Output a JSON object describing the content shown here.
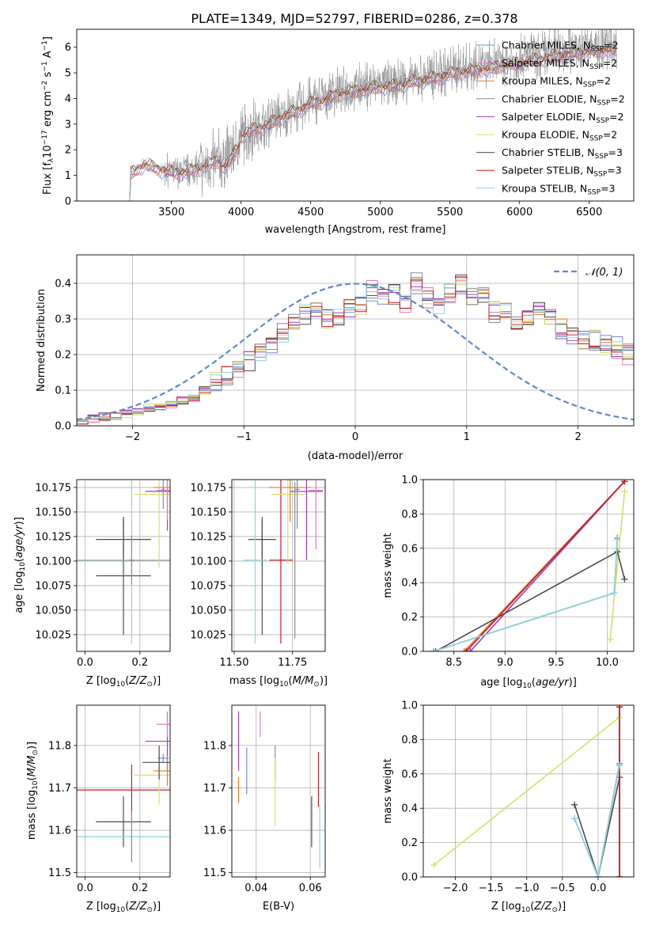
{
  "figure": {
    "title": "PLATE=1349, MJD=52797, FIBERID=0286, z=0.378"
  },
  "colors": {
    "chabrier_miles": "#6c8ed6",
    "salpeter_miles": "#e27ac0",
    "kroupa_miles": "#e07a2a",
    "chabrier_elodie": "#8c8c8c",
    "salpeter_elodie": "#9d3dbd",
    "kroupa_elodie": "#d8e068",
    "chabrier_stelib": "#4d4d4d",
    "salpeter_stelib": "#c81e1e",
    "kroupa_stelib": "#8ed4dc",
    "normal_curve": "#5e88d6",
    "grid": "#b0b0b0"
  },
  "chart_data": [
    {
      "id": "spectrum",
      "type": "line",
      "title": "PLATE=1349, MJD=52797, FIBERID=0286, z=0.378",
      "xlabel": "wavelength [Angstrom, rest frame]",
      "ylabel": "Flux [f$_\\lambda$10$^{-17}$ erg cm$^{-2}$ s$^{-1}$ A$^{-1}$]",
      "ylabel_parts": [
        "Flux [f",
        "λ",
        "10",
        "−17",
        " erg cm",
        "−2",
        " s",
        "−1",
        " A",
        "−1",
        "]"
      ],
      "xlim": [
        2820,
        6820
      ],
      "ylim": [
        0,
        6.7
      ],
      "xticks": [
        3500,
        4000,
        4500,
        5000,
        5500,
        6000,
        6500
      ],
      "yticks": [
        0,
        1,
        2,
        3,
        4,
        5,
        6
      ],
      "grid": false,
      "legend_position": "top-right",
      "legend": [
        {
          "name": "Chabrier MILES, N",
          "sub": "SSP",
          "suffix": "=2",
          "color_key": "chabrier_miles"
        },
        {
          "name": "Salpeter MILES, N",
          "sub": "SSP",
          "suffix": "=2",
          "color_key": "salpeter_miles"
        },
        {
          "name": "Kroupa MILES, N",
          "sub": "SSP",
          "suffix": "=2",
          "color_key": "kroupa_miles"
        },
        {
          "name": "Chabrier ELODIE, N",
          "sub": "SSP",
          "suffix": "=2",
          "color_key": "chabrier_elodie"
        },
        {
          "name": "Salpeter ELODIE, N",
          "sub": "SSP",
          "suffix": "=2",
          "color_key": "salpeter_elodie"
        },
        {
          "name": "Kroupa ELODIE, N",
          "sub": "SSP",
          "suffix": "=2",
          "color_key": "kroupa_elodie"
        },
        {
          "name": "Chabrier STELIB, N",
          "sub": "SSP",
          "suffix": "=3",
          "color_key": "chabrier_stelib"
        },
        {
          "name": "Salpeter STELIB, N",
          "sub": "SSP",
          "suffix": "=3",
          "color_key": "salpeter_stelib"
        },
        {
          "name": "Kroupa STELIB, N",
          "sub": "SSP",
          "suffix": "=3",
          "color_key": "kroupa_stelib"
        }
      ],
      "data_range": [
        3200,
        6700
      ],
      "continuum": {
        "x": [
          3200,
          3300,
          3400,
          3500,
          3600,
          3700,
          3800,
          3900,
          4000,
          4100,
          4200,
          4300,
          4400,
          4500,
          4600,
          4700,
          4800,
          4900,
          5000,
          5100,
          5200,
          5300,
          5400,
          5500,
          5600,
          5700,
          5800,
          5900,
          6000,
          6100,
          6200,
          6300,
          6400,
          6500,
          6600,
          6700
        ],
        "y": [
          1.05,
          1.45,
          1.3,
          1.15,
          1.15,
          1.3,
          1.55,
          1.7,
          2.6,
          2.9,
          3.05,
          3.4,
          3.6,
          3.9,
          4.05,
          4.3,
          4.4,
          4.5,
          4.6,
          4.6,
          4.75,
          4.85,
          4.95,
          5.1,
          5.2,
          5.25,
          5.35,
          5.45,
          5.55,
          5.65,
          5.75,
          5.85,
          5.95,
          6.0,
          6.05,
          6.1
        ]
      }
    },
    {
      "id": "residuals",
      "type": "histogram",
      "xlabel": "(data-model)/error",
      "ylabel": "Normed distribution",
      "xlim": [
        -2.5,
        2.5
      ],
      "ylim": [
        0,
        0.48
      ],
      "xticks": [
        -2,
        -1,
        0,
        1,
        2
      ],
      "yticks": [
        0.0,
        0.1,
        0.2,
        0.3,
        0.4
      ],
      "grid": true,
      "legend_position": "top-right",
      "legend": [
        {
          "name": "𝒩(0, 1)",
          "color_key": "normal_curve",
          "style": "dashed"
        }
      ],
      "bin_width": 0.1,
      "bin_start": -2.5,
      "base_values": [
        0.01,
        0.02,
        0.025,
        0.03,
        0.035,
        0.04,
        0.05,
        0.055,
        0.06,
        0.07,
        0.08,
        0.1,
        0.12,
        0.14,
        0.16,
        0.18,
        0.2,
        0.23,
        0.26,
        0.29,
        0.31,
        0.32,
        0.3,
        0.3,
        0.33,
        0.34,
        0.38,
        0.36,
        0.37,
        0.34,
        0.4,
        0.36,
        0.33,
        0.37,
        0.4,
        0.37,
        0.36,
        0.32,
        0.32,
        0.3,
        0.31,
        0.32,
        0.3,
        0.27,
        0.25,
        0.24,
        0.24,
        0.23,
        0.22,
        0.2,
        0.21,
        0.18,
        0.16,
        0.14,
        0.12,
        0.1,
        0.09,
        0.08,
        0.07,
        0.06,
        0.05,
        0.05,
        0.04,
        0.04,
        0.04,
        0.03,
        0.03,
        0.03,
        0.03,
        0.03,
        0.03,
        0.03
      ],
      "normal": {
        "mean": 0,
        "sigma": 1
      }
    },
    {
      "id": "age_vs_Z",
      "type": "scatter",
      "xlabel": "Z [log$_{10}$(Z/Z$_\\odot$)]",
      "ylabel": "age  [log$_{10}$(age/yr)]",
      "xlim": [
        -0.03,
        0.31
      ],
      "ylim": [
        10.008,
        10.183
      ],
      "xticks": [
        0.0,
        0.2
      ],
      "xtick_labels": [
        "0.0",
        "0.2"
      ],
      "yticks": [
        10.025,
        10.05,
        10.075,
        10.1,
        10.125,
        10.15,
        10.175
      ],
      "ytick_labels": [
        "10.025",
        "10.050",
        "10.075",
        "10.100",
        "10.125",
        "10.150",
        "10.175"
      ],
      "grid": true,
      "points": [
        {
          "color_key": "chabrier_stelib",
          "x": 0.14,
          "xerr": 0.1,
          "y": 10.122,
          "yerr": 0.022
        },
        {
          "color_key": "chabrier_stelib",
          "x": 0.14,
          "xerr": 0.1,
          "y": 10.085,
          "yerr": 0.06
        },
        {
          "color_key": "salpeter_stelib",
          "x": 0.17,
          "xerr": 0.2,
          "y": 10.101,
          "yerr": 0.0
        },
        {
          "color_key": "kroupa_stelib",
          "x": 0.17,
          "xerr": 0.2,
          "y": 10.101,
          "yerr": 0.085
        },
        {
          "color_key": "chabrier_elodie",
          "x": 0.17,
          "xerr": 0.01,
          "y": 10.101,
          "yerr": 0.025
        },
        {
          "color_key": "kroupa_elodie",
          "x": 0.27,
          "xerr": 0.09,
          "y": 10.168,
          "yerr": 0.075
        },
        {
          "color_key": "salpeter_elodie",
          "x": 0.3,
          "xerr": 0.08,
          "y": 10.171,
          "yerr": 0.04
        },
        {
          "color_key": "kroupa_miles",
          "x": 0.3,
          "xerr": 0.05,
          "y": 10.175,
          "yerr": 0.02
        },
        {
          "color_key": "salpeter_miles",
          "x": 0.3,
          "xerr": 0.04,
          "y": 10.172,
          "yerr": 0.03
        },
        {
          "color_key": "chabrier_miles",
          "x": 0.285,
          "xerr": 0.005,
          "y": 10.173,
          "yerr": 0.02
        }
      ]
    },
    {
      "id": "age_vs_mass",
      "type": "scatter",
      "xlabel": "mass [log$_{10}$(M/M$_\\odot$)]",
      "ylabel": "",
      "xlim": [
        11.49,
        11.89
      ],
      "ylim": [
        10.008,
        10.183
      ],
      "xticks": [
        11.5,
        11.75
      ],
      "xtick_labels": [
        "11.50",
        "11.75"
      ],
      "yticks": [
        10.025,
        10.05,
        10.075,
        10.1,
        10.125,
        10.15,
        10.175
      ],
      "ytick_labels": [
        "10.025",
        "10.050",
        "10.075",
        "10.100",
        "10.125",
        "10.150",
        "10.175"
      ],
      "grid": true,
      "points": [
        {
          "color_key": "chabrier_stelib",
          "x": 11.62,
          "xerr": 0.06,
          "y": 10.122,
          "yerr": 0.02
        },
        {
          "color_key": "chabrier_stelib",
          "x": 11.62,
          "xerr": 0.0,
          "y": 10.085,
          "yerr": 0.06
        },
        {
          "color_key": "salpeter_stelib",
          "x": 11.7,
          "xerr": 0.05,
          "y": 10.101,
          "yerr": 0.085
        },
        {
          "color_key": "kroupa_stelib",
          "x": 11.59,
          "xerr": 0.05,
          "y": 10.101,
          "yerr": 0.085
        },
        {
          "color_key": "kroupa_elodie",
          "x": 11.73,
          "xerr": 0.07,
          "y": 10.168,
          "yerr": 0.07
        },
        {
          "color_key": "salpeter_elodie",
          "x": 11.81,
          "xerr": 0.07,
          "y": 10.171,
          "yerr": 0.07
        },
        {
          "color_key": "kroupa_miles",
          "x": 11.74,
          "xerr": 0.09,
          "y": 10.175,
          "yerr": 0.035
        },
        {
          "color_key": "salpeter_miles",
          "x": 11.85,
          "xerr": 0.03,
          "y": 10.172,
          "yerr": 0.06
        },
        {
          "color_key": "chabrier_miles",
          "x": 11.77,
          "xerr": 0.01,
          "y": 10.173,
          "yerr": 0.04
        },
        {
          "color_key": "chabrier_elodie",
          "x": 11.76,
          "xerr": 0.0,
          "y": 10.101,
          "yerr": 0.08
        }
      ]
    },
    {
      "id": "massweight_vs_age",
      "type": "line",
      "xlabel": "age  [log$_{10}$(age/yr)]",
      "ylabel": "mass weight",
      "xlim": [
        8.2,
        10.26
      ],
      "ylim": [
        0,
        1.0
      ],
      "xticks": [
        8.5,
        9.0,
        9.5,
        10.0
      ],
      "xtick_labels": [
        "8.5",
        "9.0",
        "9.5",
        "10.0"
      ],
      "yticks": [
        0.0,
        0.2,
        0.4,
        0.6,
        0.8,
        1.0
      ],
      "ytick_labels": [
        "0.0",
        "0.2",
        "0.4",
        "0.6",
        "0.8",
        "1.0"
      ],
      "grid": true,
      "series": [
        {
          "color_key": "chabrier_miles",
          "x": [
            8.3,
            10.07,
            10.1
          ],
          "y": [
            0.0,
            0.34,
            0.66
          ]
        },
        {
          "color_key": "salpeter_miles",
          "x": [
            8.62,
            10.17
          ],
          "y": [
            0.0,
            0.99
          ]
        },
        {
          "color_key": "kroupa_miles",
          "x": [
            8.6,
            10.17
          ],
          "y": [
            0.0,
            0.99
          ]
        },
        {
          "color_key": "chabrier_elodie",
          "x": [
            8.3,
            10.07,
            10.1
          ],
          "y": [
            0.0,
            0.34,
            0.66
          ]
        },
        {
          "color_key": "salpeter_elodie",
          "x": [
            8.66,
            10.17
          ],
          "y": [
            0.0,
            0.99
          ]
        },
        {
          "color_key": "kroupa_elodie",
          "x": [
            10.03,
            10.17
          ],
          "y": [
            0.07,
            0.93
          ]
        },
        {
          "color_key": "chabrier_stelib",
          "x": [
            8.32,
            10.1,
            10.17
          ],
          "y": [
            0.0,
            0.58,
            0.42
          ]
        },
        {
          "color_key": "salpeter_stelib",
          "x": [
            8.62,
            10.17
          ],
          "y": [
            0.0,
            0.99
          ]
        },
        {
          "color_key": "kroupa_stelib",
          "x": [
            8.3,
            10.07,
            10.1
          ],
          "y": [
            0.0,
            0.34,
            0.65
          ]
        }
      ]
    },
    {
      "id": "mass_vs_Z",
      "type": "scatter",
      "xlabel": "Z [log$_{10}$(Z/Z$_\\odot$)]",
      "ylabel": "mass [log$_{10}$(M/M$_\\odot$)]",
      "xlim": [
        -0.03,
        0.31
      ],
      "ylim": [
        11.49,
        11.895
      ],
      "xticks": [
        0.0,
        0.2
      ],
      "xtick_labels": [
        "0.0",
        "0.2"
      ],
      "yticks": [
        11.5,
        11.6,
        11.7,
        11.8
      ],
      "ytick_labels": [
        "11.5",
        "11.6",
        "11.7",
        "11.8"
      ],
      "grid": true,
      "points": [
        {
          "color_key": "chabrier_stelib",
          "x": 0.14,
          "xerr": 0.1,
          "y": 11.62,
          "yerr": 0.06
        },
        {
          "color_key": "salpeter_stelib",
          "x": 0.17,
          "xerr": 0.2,
          "y": 11.695,
          "yerr": 0.06
        },
        {
          "color_key": "kroupa_stelib",
          "x": 0.17,
          "xerr": 0.2,
          "y": 11.585,
          "yerr": 0.06
        },
        {
          "color_key": "chabrier_elodie",
          "x": 0.17,
          "xerr": 0.0,
          "y": 11.585,
          "yerr": 0.06
        },
        {
          "color_key": "kroupa_elodie",
          "x": 0.27,
          "xerr": 0.09,
          "y": 11.73,
          "yerr": 0.07
        },
        {
          "color_key": "salpeter_elodie",
          "x": 0.3,
          "xerr": 0.08,
          "y": 11.81,
          "yerr": 0.07
        },
        {
          "color_key": "kroupa_miles",
          "x": 0.3,
          "xerr": 0.05,
          "y": 11.74,
          "yerr": 0.035
        },
        {
          "color_key": "salpeter_miles",
          "x": 0.3,
          "xerr": 0.04,
          "y": 11.85,
          "yerr": 0.03
        },
        {
          "color_key": "chabrier_miles",
          "x": 0.285,
          "xerr": 0.02,
          "y": 11.77,
          "yerr": 0.01
        },
        {
          "color_key": "chabrier_stelib",
          "x": 0.27,
          "xerr": 0.06,
          "y": 11.76,
          "yerr": 0.04
        }
      ]
    },
    {
      "id": "mass_vs_ebv",
      "type": "scatter",
      "xlabel": "E(B-V)",
      "ylabel": "",
      "xlim": [
        0.031,
        0.0655
      ],
      "ylim": [
        11.49,
        11.895
      ],
      "xticks": [
        0.04,
        0.06
      ],
      "xtick_labels": [
        "0.04",
        "0.06"
      ],
      "yticks": [
        11.5,
        11.6,
        11.7,
        11.8
      ],
      "ytick_labels": [
        "11.5",
        "11.6",
        "11.7",
        "11.8"
      ],
      "grid": true,
      "points": [
        {
          "color_key": "kroupa_miles",
          "x": 0.0335,
          "y": 11.695,
          "yerr": 0.03
        },
        {
          "color_key": "salpeter_elodie",
          "x": 0.0335,
          "y": 11.81,
          "yerr": 0.07
        },
        {
          "color_key": "chabrier_miles",
          "x": 0.0365,
          "y": 11.74,
          "yerr": 0.055
        },
        {
          "color_key": "salpeter_miles",
          "x": 0.0415,
          "y": 11.85,
          "yerr": 0.03
        },
        {
          "color_key": "chabrier_elodie",
          "x": 0.047,
          "y": 11.76,
          "yerr": 0.04
        },
        {
          "color_key": "kroupa_elodie",
          "x": 0.047,
          "y": 11.69,
          "yerr": 0.08
        },
        {
          "color_key": "chabrier_stelib",
          "x": 0.0605,
          "y": 11.62,
          "yerr": 0.06
        },
        {
          "color_key": "salpeter_stelib",
          "x": 0.063,
          "y": 11.72,
          "yerr": 0.065
        },
        {
          "color_key": "kroupa_stelib",
          "x": 0.0635,
          "y": 11.585,
          "yerr": 0.075
        }
      ]
    },
    {
      "id": "massweight_vs_Z",
      "type": "line",
      "xlabel": "Z [log$_{10}$(Z/Z$_\\odot$)]",
      "ylabel": "mass weight",
      "xlim": [
        -2.45,
        0.5
      ],
      "ylim": [
        0,
        1.0
      ],
      "xticks": [
        -2.0,
        -1.5,
        -1.0,
        -0.5,
        0.0
      ],
      "xtick_labels": [
        "−2.0",
        "−1.5",
        "−1.0",
        "−0.5",
        "0.0"
      ],
      "yticks": [
        0.0,
        0.2,
        0.4,
        0.6,
        0.8,
        1.0
      ],
      "ytick_labels": [
        "0.0",
        "0.2",
        "0.4",
        "0.6",
        "0.8",
        "1.0"
      ],
      "grid": true,
      "series": [
        {
          "color_key": "chabrier_miles",
          "x": [
            -0.33,
            0.0,
            0.3
          ],
          "y": [
            0.34,
            0.0,
            0.66
          ]
        },
        {
          "color_key": "salpeter_miles",
          "x": [
            0.3,
            0.3
          ],
          "y": [
            0.0,
            0.99
          ]
        },
        {
          "color_key": "kroupa_miles",
          "x": [
            0.3,
            0.3
          ],
          "y": [
            0.0,
            0.99
          ]
        },
        {
          "color_key": "chabrier_elodie",
          "x": [
            -0.33,
            0.0,
            0.3
          ],
          "y": [
            0.34,
            0.0,
            0.65
          ]
        },
        {
          "color_key": "salpeter_elodie",
          "x": [
            0.3,
            0.3
          ],
          "y": [
            0.0,
            0.99
          ]
        },
        {
          "color_key": "kroupa_elodie",
          "x": [
            -2.3,
            0.3
          ],
          "y": [
            0.07,
            0.93
          ]
        },
        {
          "color_key": "chabrier_stelib",
          "x": [
            -0.33,
            0.0,
            0.3
          ],
          "y": [
            0.42,
            0.0,
            0.58
          ]
        },
        {
          "color_key": "salpeter_stelib",
          "x": [
            0.3,
            0.3
          ],
          "y": [
            0.0,
            0.99
          ]
        },
        {
          "color_key": "kroupa_stelib",
          "x": [
            -0.33,
            0.0,
            0.3
          ],
          "y": [
            0.34,
            0.0,
            0.65
          ]
        }
      ]
    }
  ]
}
